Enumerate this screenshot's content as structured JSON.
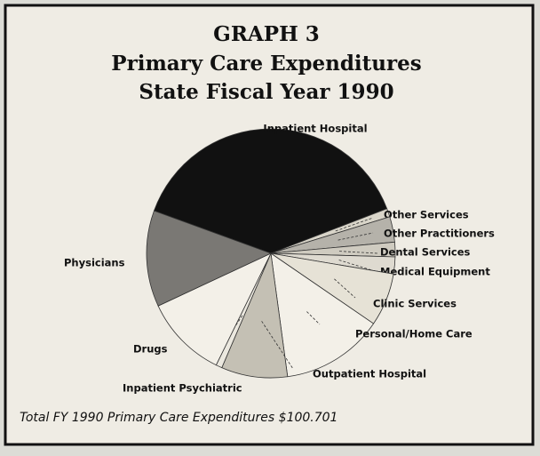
{
  "chart_data": {
    "type": "pie",
    "title": "GRAPH 3",
    "subtitle": [
      "Primary Care Expenditures",
      "State Fiscal Year 1990"
    ],
    "annotation": "Total FY 1990 Primary Care Expenditures $100.701",
    "categories": [
      "Inpatient Hospital",
      "Other Services",
      "Other Practitioners",
      "Dental Services",
      "Medical Equipment",
      "Clinic Services",
      "Personal/Home Care",
      "Outpatient Hospital",
      "Inpatient Psychiatric",
      "Drugs",
      "Physicians"
    ],
    "values": [
      38.6,
      1.1,
      3.3,
      1.9,
      2.2,
      6.9,
      13.3,
      8.6,
      0.8,
      10.8,
      12.5
    ],
    "colors": [
      "#111111",
      "#d9d5c9",
      "#b5b2aa",
      "#cfcbc0",
      "#dedad0",
      "#e6e2d6",
      "#f3f0e8",
      "#c4c0b4",
      "#ebe8df",
      "#f3f0e8",
      "#7a7874"
    ]
  }
}
